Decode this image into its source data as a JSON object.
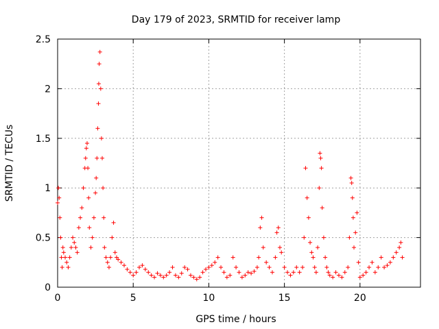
{
  "chart_data": {
    "type": "scatter",
    "title": "Day 179 of 2023, SRMTID for receiver lamp",
    "xlabel": "GPS time / hours",
    "ylabel": "SRMTID / TECUs",
    "xlim": [
      0,
      24
    ],
    "ylim": [
      0,
      2.5
    ],
    "xticks": [
      0,
      5,
      10,
      15,
      20
    ],
    "xtick_labels": [
      "0",
      "5",
      "10",
      "15",
      "20"
    ],
    "yticks": [
      0,
      0.5,
      1,
      1.5,
      2,
      2.5
    ],
    "ytick_labels": [
      "0",
      "0.5",
      "1",
      "1.5",
      "2",
      "2.5"
    ],
    "grid": true,
    "marker": "+",
    "colors": {
      "series": "#ff0000",
      "grid": "#a0a0a0",
      "axis": "#000000"
    },
    "series": [
      {
        "name": "SRMTID",
        "x": [
          0.0,
          0.05,
          0.1,
          0.15,
          0.2,
          0.25,
          0.3,
          0.35,
          0.4,
          0.5,
          0.6,
          0.7,
          0.8,
          0.9,
          1.0,
          1.1,
          1.2,
          1.3,
          1.4,
          1.5,
          1.6,
          1.7,
          1.8,
          1.85,
          1.9,
          1.95,
          2.0,
          2.05,
          2.1,
          2.2,
          2.3,
          2.4,
          2.5,
          2.55,
          2.6,
          2.65,
          2.7,
          2.72,
          2.75,
          2.8,
          2.85,
          2.9,
          2.95,
          3.0,
          3.05,
          3.1,
          3.2,
          3.3,
          3.4,
          3.5,
          3.6,
          3.7,
          3.8,
          3.9,
          4.0,
          4.2,
          4.4,
          4.6,
          4.8,
          5.0,
          5.2,
          5.4,
          5.6,
          5.8,
          6.0,
          6.2,
          6.4,
          6.6,
          6.8,
          7.0,
          7.2,
          7.4,
          7.6,
          7.8,
          8.0,
          8.2,
          8.4,
          8.6,
          8.8,
          9.0,
          9.2,
          9.4,
          9.6,
          9.8,
          10.0,
          10.2,
          10.4,
          10.6,
          10.8,
          11.0,
          11.2,
          11.4,
          11.6,
          11.8,
          12.0,
          12.2,
          12.4,
          12.6,
          12.8,
          13.0,
          13.2,
          13.3,
          13.4,
          13.5,
          13.6,
          13.8,
          14.0,
          14.2,
          14.4,
          14.5,
          14.6,
          14.7,
          14.8,
          15.0,
          15.2,
          15.4,
          15.6,
          15.8,
          16.0,
          16.2,
          16.3,
          16.4,
          16.5,
          16.6,
          16.7,
          16.8,
          16.9,
          17.0,
          17.1,
          17.2,
          17.3,
          17.35,
          17.4,
          17.45,
          17.5,
          17.6,
          17.7,
          17.8,
          17.9,
          18.0,
          18.2,
          18.4,
          18.6,
          18.8,
          19.0,
          19.2,
          19.3,
          19.4,
          19.45,
          19.5,
          19.55,
          19.6,
          19.7,
          19.8,
          19.9,
          20.0,
          20.2,
          20.4,
          20.6,
          20.8,
          21.0,
          21.2,
          21.4,
          21.6,
          21.8,
          22.0,
          22.2,
          22.4,
          22.6,
          22.7,
          22.8
        ],
        "y": [
          0.85,
          1.0,
          0.9,
          0.7,
          0.5,
          0.3,
          0.2,
          0.4,
          0.35,
          0.3,
          0.25,
          0.2,
          0.3,
          0.4,
          0.5,
          0.45,
          0.4,
          0.35,
          0.6,
          0.7,
          0.8,
          1.0,
          1.2,
          1.3,
          1.4,
          1.45,
          1.2,
          0.9,
          0.6,
          0.4,
          0.5,
          0.7,
          0.95,
          1.1,
          1.3,
          1.6,
          1.85,
          2.05,
          2.25,
          2.37,
          2.0,
          1.5,
          1.3,
          1.0,
          0.7,
          0.4,
          0.3,
          0.25,
          0.2,
          0.3,
          0.5,
          0.65,
          0.35,
          0.3,
          0.28,
          0.25,
          0.22,
          0.18,
          0.15,
          0.12,
          0.15,
          0.2,
          0.22,
          0.18,
          0.15,
          0.12,
          0.1,
          0.14,
          0.12,
          0.1,
          0.12,
          0.15,
          0.2,
          0.12,
          0.1,
          0.14,
          0.2,
          0.18,
          0.12,
          0.1,
          0.08,
          0.1,
          0.15,
          0.18,
          0.2,
          0.22,
          0.25,
          0.3,
          0.2,
          0.15,
          0.1,
          0.12,
          0.3,
          0.2,
          0.15,
          0.1,
          0.12,
          0.15,
          0.14,
          0.16,
          0.2,
          0.3,
          0.6,
          0.7,
          0.4,
          0.25,
          0.2,
          0.15,
          0.3,
          0.55,
          0.6,
          0.4,
          0.35,
          0.2,
          0.15,
          0.12,
          0.15,
          0.2,
          0.15,
          0.2,
          0.5,
          1.2,
          0.9,
          0.7,
          0.45,
          0.35,
          0.3,
          0.2,
          0.15,
          0.4,
          1.0,
          1.35,
          1.3,
          1.2,
          0.8,
          0.5,
          0.3,
          0.2,
          0.15,
          0.12,
          0.1,
          0.15,
          0.12,
          0.1,
          0.15,
          0.2,
          0.5,
          1.1,
          1.05,
          0.9,
          0.7,
          0.4,
          0.55,
          0.75,
          0.25,
          0.1,
          0.12,
          0.15,
          0.2,
          0.25,
          0.15,
          0.2,
          0.3,
          0.2,
          0.22,
          0.25,
          0.3,
          0.35,
          0.4,
          0.45,
          0.3
        ]
      }
    ]
  }
}
